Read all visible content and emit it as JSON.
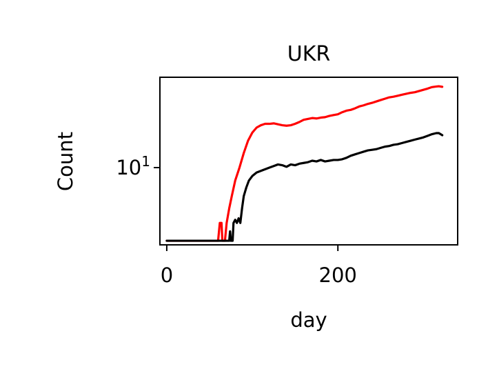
{
  "chart_data": {
    "type": "line",
    "title": "UKR",
    "xlabel": "day",
    "ylabel": "Count",
    "xlim": [
      -8,
      340
    ],
    "ylim": [
      3.8,
      31
    ],
    "yscale": "log",
    "x_ticks": [
      {
        "value": 0,
        "label": "0"
      },
      {
        "value": 200,
        "label": "200"
      }
    ],
    "y_ticks": [
      {
        "value": 10,
        "base": "10",
        "exp": "1"
      }
    ],
    "grid": false,
    "legend": "none",
    "series": [
      {
        "color": "#ff0000",
        "points": [
          [
            0,
            4
          ],
          [
            60,
            4
          ],
          [
            62,
            5
          ],
          [
            64,
            5
          ],
          [
            65,
            4
          ],
          [
            68,
            4
          ],
          [
            70,
            5
          ],
          [
            73,
            6
          ],
          [
            76,
            7
          ],
          [
            80,
            8.5
          ],
          [
            85,
            10
          ],
          [
            90,
            12
          ],
          [
            95,
            14
          ],
          [
            100,
            15.5
          ],
          [
            105,
            16.5
          ],
          [
            110,
            17
          ],
          [
            115,
            17.3
          ],
          [
            120,
            17.3
          ],
          [
            125,
            17.4
          ],
          [
            130,
            17.2
          ],
          [
            135,
            17
          ],
          [
            140,
            16.9
          ],
          [
            145,
            17
          ],
          [
            150,
            17.3
          ],
          [
            155,
            17.7
          ],
          [
            160,
            18.2
          ],
          [
            165,
            18.4
          ],
          [
            170,
            18.6
          ],
          [
            175,
            18.5
          ],
          [
            180,
            18.7
          ],
          [
            185,
            18.8
          ],
          [
            190,
            19.1
          ],
          [
            195,
            19.3
          ],
          [
            200,
            19.5
          ],
          [
            205,
            20
          ],
          [
            210,
            20.4
          ],
          [
            215,
            20.6
          ],
          [
            220,
            21
          ],
          [
            225,
            21.5
          ],
          [
            230,
            21.8
          ],
          [
            235,
            22.2
          ],
          [
            240,
            22.5
          ],
          [
            245,
            22.9
          ],
          [
            250,
            23.3
          ],
          [
            255,
            23.7
          ],
          [
            260,
            24.1
          ],
          [
            265,
            24.3
          ],
          [
            270,
            24.6
          ],
          [
            275,
            24.9
          ],
          [
            280,
            25.2
          ],
          [
            285,
            25.5
          ],
          [
            290,
            25.7
          ],
          [
            295,
            26.1
          ],
          [
            300,
            26.5
          ],
          [
            305,
            26.9
          ],
          [
            310,
            27.4
          ],
          [
            315,
            27.6
          ],
          [
            318,
            27.7
          ],
          [
            322,
            27.5
          ]
        ]
      },
      {
        "color": "#000000",
        "points": [
          [
            0,
            4
          ],
          [
            73,
            4
          ],
          [
            74,
            4.5
          ],
          [
            75,
            4
          ],
          [
            77,
            4
          ],
          [
            78,
            5
          ],
          [
            80,
            5.2
          ],
          [
            82,
            5
          ],
          [
            84,
            5.3
          ],
          [
            86,
            5
          ],
          [
            88,
            6
          ],
          [
            90,
            7
          ],
          [
            93,
            7.8
          ],
          [
            96,
            8.5
          ],
          [
            100,
            9
          ],
          [
            105,
            9.4
          ],
          [
            110,
            9.6
          ],
          [
            115,
            9.8
          ],
          [
            120,
            10
          ],
          [
            125,
            10.2
          ],
          [
            130,
            10.4
          ],
          [
            135,
            10.3
          ],
          [
            140,
            10.1
          ],
          [
            145,
            10.4
          ],
          [
            150,
            10.3
          ],
          [
            155,
            10.5
          ],
          [
            160,
            10.6
          ],
          [
            165,
            10.7
          ],
          [
            170,
            10.9
          ],
          [
            175,
            10.8
          ],
          [
            180,
            11
          ],
          [
            185,
            10.8
          ],
          [
            190,
            10.9
          ],
          [
            195,
            11
          ],
          [
            200,
            11
          ],
          [
            205,
            11.1
          ],
          [
            210,
            11.3
          ],
          [
            215,
            11.6
          ],
          [
            220,
            11.8
          ],
          [
            225,
            12
          ],
          [
            230,
            12.2
          ],
          [
            235,
            12.4
          ],
          [
            240,
            12.5
          ],
          [
            245,
            12.6
          ],
          [
            250,
            12.8
          ],
          [
            255,
            13
          ],
          [
            260,
            13.1
          ],
          [
            265,
            13.3
          ],
          [
            270,
            13.4
          ],
          [
            275,
            13.6
          ],
          [
            280,
            13.8
          ],
          [
            285,
            14
          ],
          [
            290,
            14.2
          ],
          [
            295,
            14.4
          ],
          [
            300,
            14.6
          ],
          [
            305,
            14.9
          ],
          [
            310,
            15.2
          ],
          [
            315,
            15.4
          ],
          [
            318,
            15.4
          ],
          [
            322,
            15
          ]
        ]
      }
    ]
  }
}
